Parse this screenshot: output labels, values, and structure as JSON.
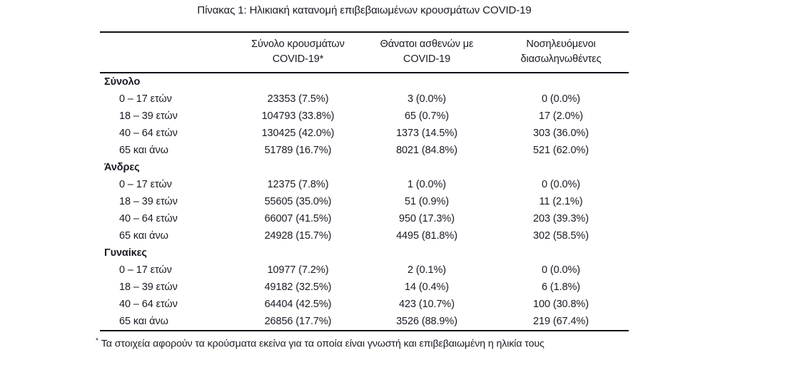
{
  "page": {
    "background": "#ffffff",
    "text_color": "#1a1a24",
    "rule_color": "#111118"
  },
  "title": "Πίνακας 1: Ηλικιακή κατανομή επιβεβαιωμένων κρουσμάτων COVID-19",
  "table": {
    "header": {
      "row_label_column": "",
      "columns": [
        {
          "line1": "Σύνολο κρουσμάτων",
          "line2": "COVID-19*"
        },
        {
          "line1": "Θάνατοι ασθενών με",
          "line2": "COVID-19"
        },
        {
          "line1": "Νοσηλευόμενοι",
          "line2": "διασωληνωθέντες"
        }
      ]
    },
    "sections": [
      {
        "label": "Σύνολο",
        "rows": [
          {
            "label": "0 – 17 ετών",
            "cases": "23353 (7.5%)",
            "deaths": "3 (0.0%)",
            "intubated": "0 (0.0%)"
          },
          {
            "label": "18 – 39 ετών",
            "cases": "104793 (33.8%)",
            "deaths": "65 (0.7%)",
            "intubated": "17 (2.0%)"
          },
          {
            "label": "40 – 64 ετών",
            "cases": "130425 (42.0%)",
            "deaths": "1373 (14.5%)",
            "intubated": "303 (36.0%)"
          },
          {
            "label": "65 και άνω",
            "cases": "51789 (16.7%)",
            "deaths": "8021 (84.8%)",
            "intubated": "521 (62.0%)"
          }
        ]
      },
      {
        "label": "Άνδρες",
        "rows": [
          {
            "label": "0 – 17 ετών",
            "cases": "12375 (7.8%)",
            "deaths": "1 (0.0%)",
            "intubated": "0 (0.0%)"
          },
          {
            "label": "18 – 39 ετών",
            "cases": "55605 (35.0%)",
            "deaths": "51 (0.9%)",
            "intubated": "11 (2.1%)"
          },
          {
            "label": "40 – 64 ετών",
            "cases": "66007 (41.5%)",
            "deaths": "950 (17.3%)",
            "intubated": "203 (39.3%)"
          },
          {
            "label": "65 και άνω",
            "cases": "24928 (15.7%)",
            "deaths": "4495 (81.8%)",
            "intubated": "302 (58.5%)"
          }
        ]
      },
      {
        "label": "Γυναίκες",
        "rows": [
          {
            "label": "0 – 17 ετών",
            "cases": "10977 (7.2%)",
            "deaths": "2 (0.1%)",
            "intubated": "0 (0.0%)"
          },
          {
            "label": "18 – 39 ετών",
            "cases": "49182 (32.5%)",
            "deaths": "14 (0.4%)",
            "intubated": "6 (1.8%)"
          },
          {
            "label": "40 – 64 ετών",
            "cases": "64404 (42.5%)",
            "deaths": "423 (10.7%)",
            "intubated": "100 (30.8%)"
          },
          {
            "label": "65 και άνω",
            "cases": "26856 (17.7%)",
            "deaths": "3526 (88.9%)",
            "intubated": "219 (67.4%)"
          }
        ]
      }
    ],
    "footnote": {
      "marker": "*",
      "text": "Τα στοιχεία αφορούν τα κρούσματα εκείνα για τα οποία είναι γνωστή και επιβεβαιωμένη η ηλικία τους"
    }
  }
}
